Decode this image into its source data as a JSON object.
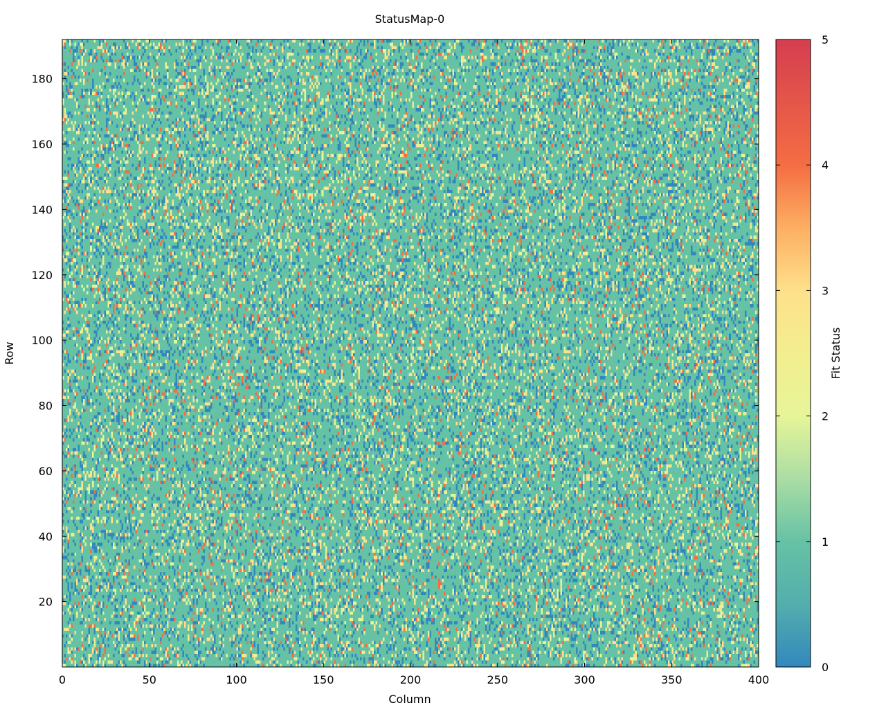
{
  "chart_data": {
    "type": "heatmap",
    "title": "StatusMap-0",
    "xlabel": "Column",
    "ylabel": "Row",
    "colorbar_label": "Fit Status",
    "xlim": [
      0,
      400
    ],
    "ylim": [
      0,
      192
    ],
    "x_ticks": [
      0,
      50,
      100,
      150,
      200,
      250,
      300,
      350,
      400
    ],
    "y_ticks": [
      20,
      40,
      60,
      80,
      100,
      120,
      140,
      160,
      180
    ],
    "color_range": [
      0,
      5
    ],
    "colorbar_ticks": [
      0,
      1,
      2,
      3,
      4,
      5
    ],
    "grid_columns": 400,
    "grid_rows": 192,
    "dominant_status": 1,
    "status_values": [
      0,
      1,
      2,
      3,
      4,
      5
    ],
    "status_fraction": {
      "0": 0.15,
      "1": 0.69,
      "2": 0.06,
      "3": 0.07,
      "4": 0.03,
      "5": 0.0
    },
    "colormap": [
      {
        "value": 0,
        "color": "#3288bd"
      },
      {
        "value": 1,
        "color": "#66c2a5"
      },
      {
        "value": 2,
        "color": "#e6f598"
      },
      {
        "value": 3,
        "color": "#fee08b"
      },
      {
        "value": 4,
        "color": "#f46d43"
      },
      {
        "value": 5,
        "color": "#d53e4f"
      }
    ],
    "colormap_stops": [
      {
        "value": 0,
        "color": "#3288bd"
      },
      {
        "value": 0.5,
        "color": "#54aead"
      },
      {
        "value": 1,
        "color": "#66c2a5"
      },
      {
        "value": 1.5,
        "color": "#abdda4"
      },
      {
        "value": 2,
        "color": "#e6f598"
      },
      {
        "value": 2.5,
        "color": "#f3ee8f"
      },
      {
        "value": 3,
        "color": "#fee08b"
      },
      {
        "value": 3.5,
        "color": "#fdae61"
      },
      {
        "value": 4,
        "color": "#f46d43"
      },
      {
        "value": 5,
        "color": "#d53e4f"
      }
    ]
  }
}
